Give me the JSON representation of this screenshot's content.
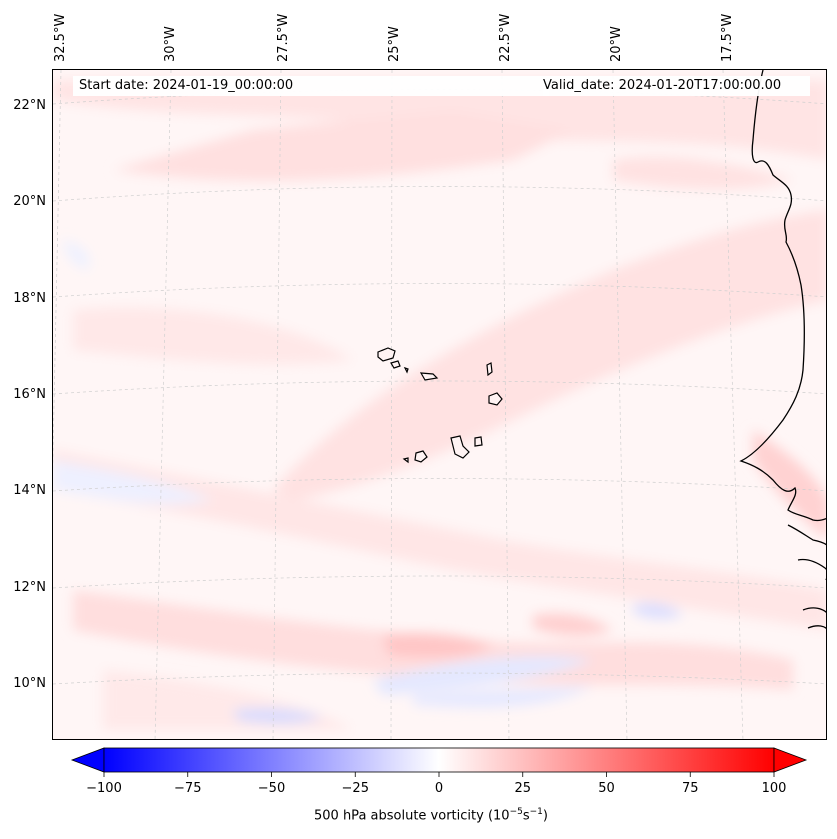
{
  "header": {
    "start_date": "Start date: 2024-01-19_00:00:00",
    "valid_date": "Valid_date: 2024-01-20T17:00:00.00"
  },
  "axes": {
    "longitude_labels": [
      "32.5°W",
      "30°W",
      "27.5°W",
      "25°W",
      "22.5°W",
      "20°W",
      "17.5°W"
    ],
    "latitude_labels": [
      "22°N",
      "20°N",
      "18°N",
      "16°N",
      "14°N",
      "12°N",
      "10°N"
    ]
  },
  "colorbar": {
    "label": "500 hPa absolute vorticity (10",
    "label_exp1": "−5",
    "label_mid": "s",
    "label_exp2": "−1",
    "label_end": ")",
    "ticks": [
      "−100",
      "−75",
      "−50",
      "−25",
      "0",
      "25",
      "50",
      "75",
      "100"
    ],
    "min": -100,
    "max": 100,
    "negative_color": "#0000ff",
    "positive_color": "#ff0000"
  },
  "map": {
    "field": "500 hPa absolute vorticity",
    "region": "Cape Verde and West African coast"
  }
}
